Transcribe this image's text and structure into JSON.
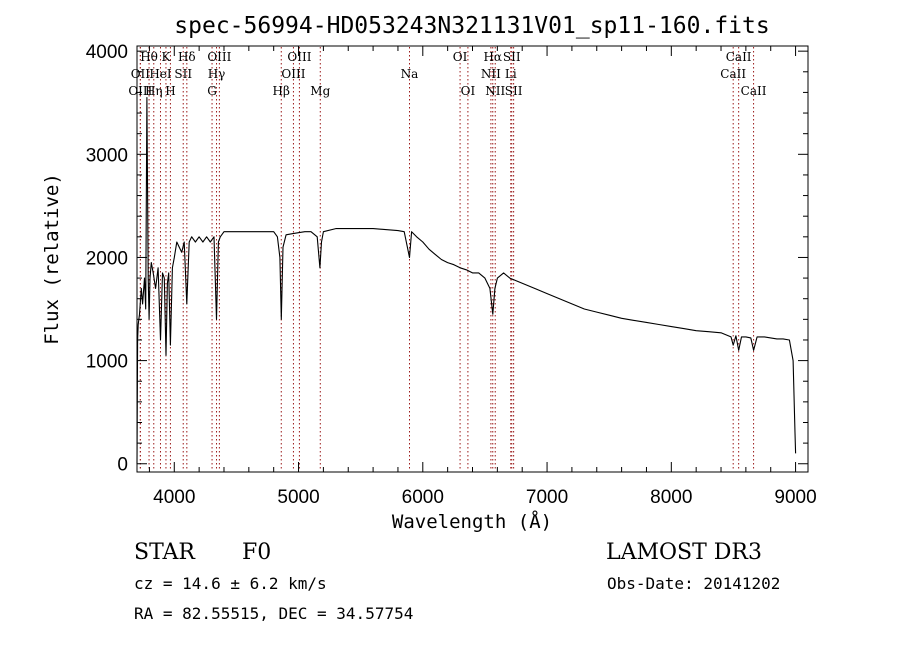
{
  "chart_data": {
    "type": "line",
    "title": "spec-56994-HD053243N321131V01_sp11-160.fits",
    "xlabel": "Wavelength (Å)",
    "ylabel": "Flux (relative)",
    "xlim": [
      3700,
      9100
    ],
    "ylim": [
      -80,
      4050
    ],
    "xticks": [
      {
        "value": 4000,
        "label": "4000"
      },
      {
        "value": 5000,
        "label": "5000"
      },
      {
        "value": 6000,
        "label": "6000"
      },
      {
        "value": 7000,
        "label": "7000"
      },
      {
        "value": 8000,
        "label": "8000"
      },
      {
        "value": 9000,
        "label": "9000"
      }
    ],
    "yticks": [
      {
        "value": 0,
        "label": "0"
      },
      {
        "value": 1000,
        "label": "1000"
      },
      {
        "value": 2000,
        "label": "2000"
      },
      {
        "value": 3000,
        "label": "3000"
      },
      {
        "value": 4000,
        "label": "4000"
      }
    ],
    "x_minor_step": 200,
    "y_minor_step": 200,
    "spectrum": {
      "name": "flux",
      "x": [
        3700,
        3705,
        3710,
        3720,
        3735,
        3745,
        3760,
        3770,
        3780,
        3790,
        3797,
        3805,
        3815,
        3830,
        3850,
        3870,
        3889,
        3905,
        3920,
        3933,
        3945,
        3955,
        3969,
        3985,
        4000,
        4020,
        4040,
        4060,
        4080,
        4101,
        4120,
        4140,
        4170,
        4200,
        4230,
        4260,
        4290,
        4320,
        4340,
        4355,
        4370,
        4400,
        4450,
        4500,
        4550,
        4600,
        4650,
        4700,
        4750,
        4800,
        4830,
        4850,
        4861,
        4875,
        4900,
        4950,
        5000,
        5050,
        5100,
        5150,
        5172,
        5185,
        5200,
        5300,
        5400,
        5500,
        5600,
        5700,
        5800,
        5850,
        5893,
        5910,
        5950,
        6000,
        6050,
        6100,
        6150,
        6200,
        6250,
        6300,
        6350,
        6400,
        6450,
        6500,
        6540,
        6563,
        6580,
        6600,
        6650,
        6700,
        6800,
        6900,
        7000,
        7100,
        7200,
        7300,
        7400,
        7500,
        7600,
        7700,
        7800,
        7900,
        8000,
        8100,
        8200,
        8300,
        8400,
        8480,
        8498,
        8520,
        8542,
        8565,
        8600,
        8640,
        8662,
        8690,
        8750,
        8800,
        8850,
        8900,
        8950,
        8980,
        8995,
        9000
      ],
      "y": [
        0,
        1200,
        1350,
        1450,
        1700,
        1550,
        1800,
        1500,
        3550,
        1800,
        1400,
        1800,
        1950,
        1850,
        1700,
        1900,
        1200,
        1850,
        1800,
        1050,
        1750,
        1850,
        1150,
        1900,
        2000,
        2150,
        2100,
        2050,
        2150,
        1550,
        2150,
        2200,
        2150,
        2200,
        2150,
        2200,
        2150,
        2200,
        1400,
        2150,
        2200,
        2250,
        2250,
        2250,
        2250,
        2250,
        2250,
        2250,
        2250,
        2250,
        2200,
        2000,
        1400,
        2100,
        2220,
        2230,
        2240,
        2250,
        2250,
        2200,
        1900,
        2150,
        2250,
        2280,
        2280,
        2280,
        2280,
        2270,
        2260,
        2250,
        2000,
        2250,
        2200,
        2150,
        2080,
        2030,
        1980,
        1950,
        1930,
        1900,
        1880,
        1850,
        1850,
        1800,
        1700,
        1450,
        1700,
        1800,
        1850,
        1800,
        1750,
        1700,
        1650,
        1600,
        1550,
        1500,
        1470,
        1440,
        1410,
        1390,
        1370,
        1350,
        1330,
        1310,
        1290,
        1280,
        1270,
        1230,
        1150,
        1240,
        1100,
        1230,
        1230,
        1220,
        1100,
        1230,
        1230,
        1220,
        1210,
        1210,
        1200,
        1000,
        300,
        100
      ]
    },
    "lines": [
      {
        "label": "Hθ",
        "wavelength": 3797,
        "row": 1
      },
      {
        "label": "OII",
        "wavelength": 3727,
        "row": 2
      },
      {
        "label": "OIII",
        "wavelength": 3727,
        "row": 3
      },
      {
        "label": "K",
        "wavelength": 3933,
        "row": 1
      },
      {
        "label": "HeI",
        "wavelength": 3889,
        "row": 2
      },
      {
        "label": "Hη",
        "wavelength": 3835,
        "row": 3
      },
      {
        "label": "SII",
        "wavelength": 4072,
        "row": 2
      },
      {
        "label": "H",
        "wavelength": 3969,
        "row": 3
      },
      {
        "label": "Hδ",
        "wavelength": 4101,
        "row": 1
      },
      {
        "label": "OIII",
        "wavelength": 4363,
        "row": 1
      },
      {
        "label": "Hγ",
        "wavelength": 4340,
        "row": 2
      },
      {
        "label": "G",
        "wavelength": 4304,
        "row": 3
      },
      {
        "label": "OIII",
        "wavelength": 5007,
        "row": 1
      },
      {
        "label": "OIII",
        "wavelength": 4959,
        "row": 2
      },
      {
        "label": "Hβ",
        "wavelength": 4861,
        "row": 3
      },
      {
        "label": "Mg",
        "wavelength": 5175,
        "row": 3
      },
      {
        "label": "Na",
        "wavelength": 5893,
        "row": 2
      },
      {
        "label": "OI",
        "wavelength": 6300,
        "row": 1
      },
      {
        "label": "OI",
        "wavelength": 6363,
        "row": 3
      },
      {
        "label": "Hα",
        "wavelength": 6563,
        "row": 1
      },
      {
        "label": "SII",
        "wavelength": 6716,
        "row": 1
      },
      {
        "label": "NII",
        "wavelength": 6548,
        "row": 2
      },
      {
        "label": "Li",
        "wavelength": 6708,
        "row": 2
      },
      {
        "label": "NII",
        "wavelength": 6583,
        "row": 3
      },
      {
        "label": "SII",
        "wavelength": 6731,
        "row": 3
      },
      {
        "label": "CaII",
        "wavelength": 8542,
        "row": 1
      },
      {
        "label": "CaII",
        "wavelength": 8498,
        "row": 2
      },
      {
        "label": "CaII",
        "wavelength": 8662,
        "row": 3
      }
    ]
  },
  "info": {
    "object_class": "STAR",
    "subclass": "F0",
    "survey": "LAMOST DR3",
    "redshift": "cz = 14.6 ± 6.2 km/s",
    "obs_date": "Obs-Date: 20141202",
    "coordinates": "RA =  82.55515, DEC =  34.57754"
  }
}
